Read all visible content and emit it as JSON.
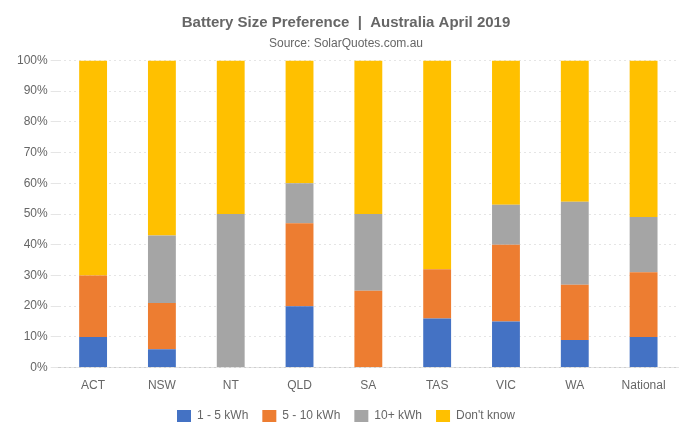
{
  "chart_data": {
    "type": "bar",
    "stacked": true,
    "title": "Battery Size Preference  |  Australia April 2019",
    "subtitle": "Source: SolarQuotes.com.au",
    "categories": [
      "ACT",
      "NSW",
      "NT",
      "QLD",
      "SA",
      "TAS",
      "VIC",
      "WA",
      "National"
    ],
    "series": [
      {
        "name": "1 - 5 kWh",
        "color": "#4472C4",
        "values": [
          10,
          6,
          0,
          20,
          0,
          16,
          15,
          9,
          10
        ]
      },
      {
        "name": "5 - 10 kWh",
        "color": "#ED7D31",
        "values": [
          20,
          15,
          0,
          27,
          25,
          16,
          25,
          18,
          21
        ]
      },
      {
        "name": "10+ kWh",
        "color": "#A5A5A5",
        "values": [
          0,
          22,
          50,
          13,
          25,
          0,
          13,
          27,
          18
        ]
      },
      {
        "name": "Don't know",
        "color": "#FFC000",
        "values": [
          70,
          57,
          50,
          40,
          50,
          68,
          47,
          46,
          51
        ]
      }
    ],
    "ylim": [
      0,
      100
    ],
    "yticks": [
      {
        "value": 0,
        "label": "0%"
      },
      {
        "value": 10,
        "label": "10%"
      },
      {
        "value": 20,
        "label": "20%"
      },
      {
        "value": 30,
        "label": "30%"
      },
      {
        "value": 40,
        "label": "40%"
      },
      {
        "value": 50,
        "label": "50%"
      },
      {
        "value": 60,
        "label": "60%"
      },
      {
        "value": 70,
        "label": "70%"
      },
      {
        "value": 80,
        "label": "80%"
      },
      {
        "value": 90,
        "label": "90%"
      },
      {
        "value": 100,
        "label": "100%"
      }
    ],
    "grid": true,
    "legend": "bottom"
  }
}
